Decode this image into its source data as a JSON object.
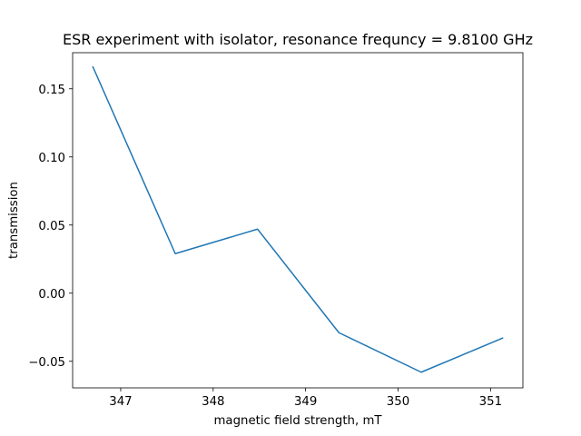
{
  "chart_data": {
    "type": "line",
    "title": "ESR experiment with isolator, resonance frequncy = 9.8100 GHz",
    "xlabel": "magnetic field strength, mT",
    "ylabel": "transmission",
    "xlim": [
      346.48,
      351.35
    ],
    "ylim": [
      -0.0695,
      0.1765
    ],
    "grid": false,
    "x_ticks": [
      347,
      348,
      349,
      350,
      351
    ],
    "y_ticks": [
      -0.05,
      0.0,
      0.05,
      0.1,
      0.15
    ],
    "x_tick_labels": [
      "347",
      "348",
      "349",
      "350",
      "351"
    ],
    "y_tick_labels": [
      "−0.05",
      "0.00",
      "0.05",
      "0.10",
      "0.15"
    ],
    "series": [
      {
        "color": "#1f77b4",
        "x": [
          346.7,
          347.59,
          348.48,
          349.36,
          350.25,
          351.13
        ],
        "y": [
          0.166,
          0.029,
          0.047,
          -0.029,
          -0.058,
          -0.033
        ]
      }
    ]
  }
}
